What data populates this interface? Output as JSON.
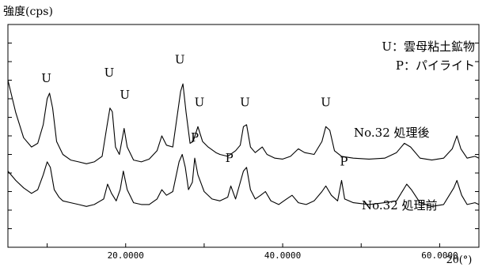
{
  "chart_data": {
    "type": "line",
    "ylabel": "強度(cps)",
    "xlabel": "2θ(°)",
    "x_ticks": [
      {
        "value": 20,
        "label": "20.0000"
      },
      {
        "value": 40,
        "label": "40.0000"
      },
      {
        "value": 60,
        "label": "60.0000"
      }
    ],
    "xlim": [
      5,
      65
    ],
    "legend": [
      "U：雲母粘土鉱物",
      "P：パイライト"
    ],
    "series": [
      {
        "name": "No.32 処理後",
        "points": [
          [
            5,
            180
          ],
          [
            6,
            145
          ],
          [
            7,
            118
          ],
          [
            8,
            108
          ],
          [
            8.8,
            112
          ],
          [
            9.5,
            132
          ],
          [
            10.0,
            160
          ],
          [
            10.3,
            166
          ],
          [
            10.7,
            150
          ],
          [
            11.2,
            114
          ],
          [
            12,
            100
          ],
          [
            13,
            94
          ],
          [
            14,
            92
          ],
          [
            15,
            90
          ],
          [
            16,
            92
          ],
          [
            17,
            98
          ],
          [
            17.6,
            130
          ],
          [
            18.0,
            150
          ],
          [
            18.3,
            146
          ],
          [
            18.7,
            108
          ],
          [
            19.2,
            100
          ],
          [
            19.8,
            128
          ],
          [
            20.2,
            108
          ],
          [
            21,
            94
          ],
          [
            22,
            92
          ],
          [
            23,
            95
          ],
          [
            24,
            104
          ],
          [
            24.6,
            120
          ],
          [
            25.2,
            110
          ],
          [
            26,
            108
          ],
          [
            27.0,
            168
          ],
          [
            27.3,
            176
          ],
          [
            27.7,
            145
          ],
          [
            28.2,
            112
          ],
          [
            28.6,
            114
          ],
          [
            29.2,
            130
          ],
          [
            29.8,
            114
          ],
          [
            30.5,
            108
          ],
          [
            31.5,
            102
          ],
          [
            32,
            100
          ],
          [
            33,
            98
          ],
          [
            34,
            104
          ],
          [
            34.6,
            110
          ],
          [
            35.0,
            130
          ],
          [
            35.4,
            132
          ],
          [
            35.9,
            108
          ],
          [
            36.5,
            102
          ],
          [
            37.4,
            108
          ],
          [
            38,
            100
          ],
          [
            39,
            96
          ],
          [
            40,
            95
          ],
          [
            41,
            98
          ],
          [
            42,
            106
          ],
          [
            42.8,
            102
          ],
          [
            44,
            100
          ],
          [
            45,
            114
          ],
          [
            45.5,
            130
          ],
          [
            46.0,
            126
          ],
          [
            46.6,
            104
          ],
          [
            47.5,
            98
          ],
          [
            49,
            96
          ],
          [
            51,
            95
          ],
          [
            53,
            96
          ],
          [
            54.5,
            102
          ],
          [
            55.5,
            112
          ],
          [
            56.3,
            108
          ],
          [
            57.5,
            96
          ],
          [
            59,
            94
          ],
          [
            60.5,
            96
          ],
          [
            61.6,
            106
          ],
          [
            62.2,
            120
          ],
          [
            62.7,
            106
          ],
          [
            63.5,
            96
          ],
          [
            64.5,
            98
          ],
          [
            65,
            96
          ]
        ]
      },
      {
        "name": "No.32 処理前",
        "points": [
          [
            5,
            82
          ],
          [
            6,
            72
          ],
          [
            7,
            64
          ],
          [
            8,
            58
          ],
          [
            8.8,
            62
          ],
          [
            9.5,
            78
          ],
          [
            10.0,
            92
          ],
          [
            10.4,
            86
          ],
          [
            10.9,
            62
          ],
          [
            11.5,
            54
          ],
          [
            12,
            50
          ],
          [
            13,
            48
          ],
          [
            14,
            46
          ],
          [
            15,
            44
          ],
          [
            16,
            46
          ],
          [
            17.2,
            52
          ],
          [
            17.7,
            68
          ],
          [
            18.2,
            58
          ],
          [
            18.8,
            50
          ],
          [
            19.3,
            62
          ],
          [
            19.7,
            82
          ],
          [
            20.2,
            62
          ],
          [
            21,
            48
          ],
          [
            22,
            46
          ],
          [
            23,
            46
          ],
          [
            24,
            52
          ],
          [
            24.6,
            62
          ],
          [
            25.2,
            56
          ],
          [
            26,
            60
          ],
          [
            26.8,
            92
          ],
          [
            27.2,
            100
          ],
          [
            27.6,
            86
          ],
          [
            28.0,
            62
          ],
          [
            28.5,
            70
          ],
          [
            28.8,
            96
          ],
          [
            29.2,
            78
          ],
          [
            30,
            60
          ],
          [
            31,
            52
          ],
          [
            32,
            50
          ],
          [
            33,
            54
          ],
          [
            33.4,
            66
          ],
          [
            34,
            52
          ],
          [
            35.0,
            82
          ],
          [
            35.4,
            86
          ],
          [
            35.9,
            62
          ],
          [
            36.5,
            52
          ],
          [
            37.2,
            56
          ],
          [
            37.8,
            60
          ],
          [
            38.5,
            50
          ],
          [
            39.5,
            46
          ],
          [
            40.5,
            52
          ],
          [
            41.2,
            56
          ],
          [
            42,
            48
          ],
          [
            43,
            46
          ],
          [
            44,
            50
          ],
          [
            45,
            60
          ],
          [
            45.5,
            66
          ],
          [
            46.2,
            56
          ],
          [
            47,
            50
          ],
          [
            47.5,
            72
          ],
          [
            47.9,
            52
          ],
          [
            49,
            48
          ],
          [
            51,
            46
          ],
          [
            53,
            48
          ],
          [
            54.5,
            50
          ],
          [
            55.8,
            68
          ],
          [
            56.4,
            62
          ],
          [
            57.5,
            48
          ],
          [
            59,
            44
          ],
          [
            60.5,
            46
          ],
          [
            61.8,
            64
          ],
          [
            62.2,
            72
          ],
          [
            62.8,
            56
          ],
          [
            63.5,
            46
          ],
          [
            64.5,
            48
          ],
          [
            65,
            46
          ]
        ]
      }
    ],
    "annotations": [
      {
        "text": "U",
        "x": 9.9,
        "y": 178
      },
      {
        "text": "U",
        "x": 17.9,
        "y": 184
      },
      {
        "text": "U",
        "x": 19.9,
        "y": 160
      },
      {
        "text": "U",
        "x": 26.9,
        "y": 198
      },
      {
        "text": "U",
        "x": 29.4,
        "y": 152
      },
      {
        "text": "U",
        "x": 35.2,
        "y": 152
      },
      {
        "text": "U",
        "x": 45.5,
        "y": 152
      },
      {
        "text": "P",
        "x": 28.8,
        "y": 114
      },
      {
        "text": "P",
        "x": 33.2,
        "y": 92
      },
      {
        "text": "P",
        "x": 47.8,
        "y": 88
      }
    ]
  }
}
